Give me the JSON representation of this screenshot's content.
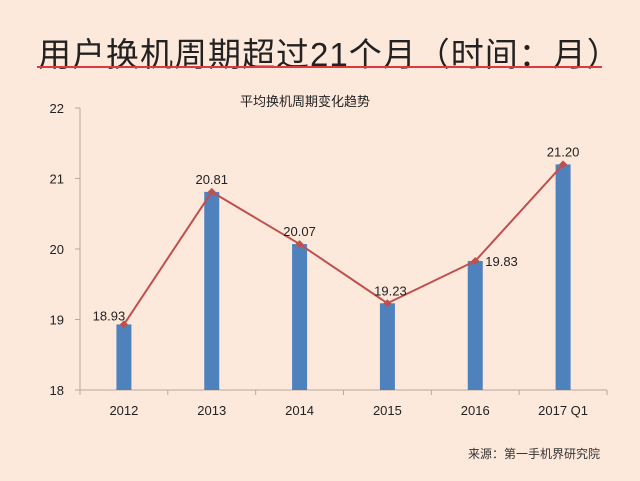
{
  "slide_title": "用户换机周期超过21个月（时间：月）",
  "source": "来源：第一手机界研究院",
  "colors": {
    "bar": "#4f81bd",
    "line": "#c0504d",
    "title_underline": "#e0383f",
    "background": "#fde9db"
  },
  "chart_data": {
    "type": "bar+line",
    "title": "平均换机周期变化趋势",
    "categories": [
      "2012",
      "2013",
      "2014",
      "2015",
      "2016",
      "2017 Q1"
    ],
    "values": [
      18.93,
      20.81,
      20.07,
      19.23,
      19.83,
      21.2
    ],
    "data_labels": [
      "18.93",
      "20.81",
      "20.07",
      "19.23",
      "19.83",
      "21.20"
    ],
    "ylim": [
      18,
      22
    ],
    "yticks": [
      "18",
      "19",
      "20",
      "21",
      "22"
    ],
    "xlabel": "",
    "ylabel": "",
    "grid": false,
    "legend": "none"
  }
}
